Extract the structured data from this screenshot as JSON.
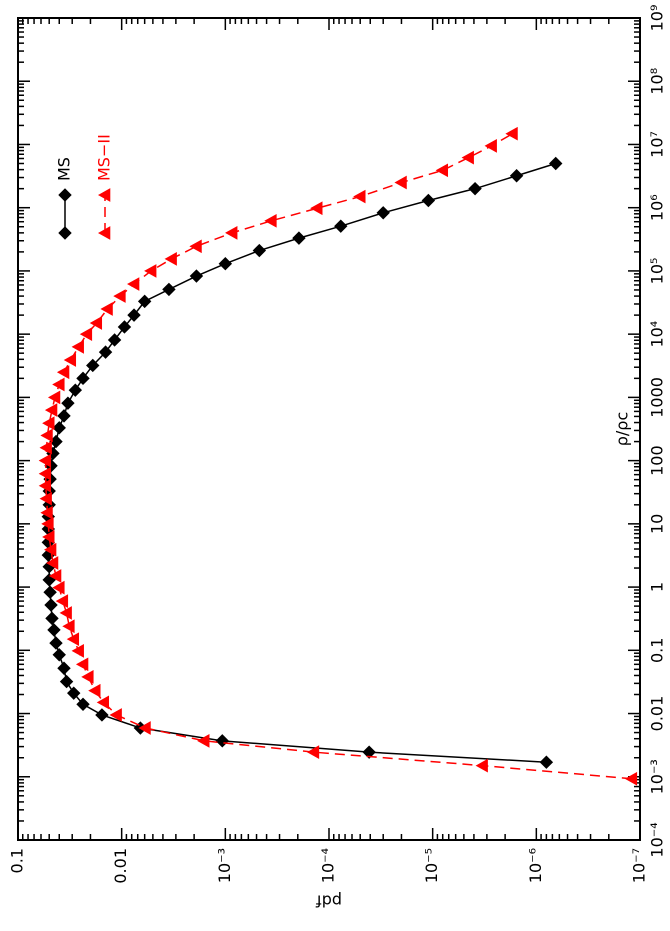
{
  "chart_data": {
    "type": "line",
    "xlabel": "ρ/ρc",
    "ylabel": "pdf",
    "xscale": "log",
    "yscale": "log",
    "xlim": [
      0.0001,
      1000000000
    ],
    "ylim": [
      1e-07,
      0.1
    ],
    "xticks": [
      {
        "value": 0.0001,
        "label": "10⁻⁴"
      },
      {
        "value": 0.001,
        "label": "10⁻³"
      },
      0.01,
      0.1,
      1,
      10,
      100,
      1000,
      {
        "value": 10000,
        "label": "10⁴"
      },
      {
        "value": 100000,
        "label": "10⁵"
      },
      {
        "value": 1000000,
        "label": "10⁶"
      },
      {
        "value": 10000000,
        "label": "10⁷"
      },
      {
        "value": 100000000,
        "label": "10⁸"
      },
      {
        "value": 1000000000,
        "label": "10⁹"
      }
    ],
    "yticks": [
      {
        "value": 1e-07,
        "label": "10⁻⁷"
      },
      {
        "value": 1e-06,
        "label": "10⁻⁶"
      },
      {
        "value": 1e-05,
        "label": "10⁻⁵"
      },
      {
        "value": 0.0001,
        "label": "10⁻⁴"
      },
      {
        "value": 0.001,
        "label": "10⁻³"
      },
      0.01,
      0.1
    ],
    "legend": "upper right",
    "series": [
      {
        "name": "MS",
        "color": "#000000",
        "linestyle": "solid",
        "marker": "diamond",
        "x": [
          0.0017,
          0.00245,
          0.0037,
          0.0059,
          0.0095,
          0.014,
          0.021,
          0.032,
          0.052,
          0.085,
          0.13,
          0.21,
          0.32,
          0.52,
          0.83,
          1.3,
          2.1,
          3.2,
          5.1,
          8.3,
          13,
          20,
          33,
          51,
          83,
          130,
          200,
          330,
          510,
          810,
          1300,
          2000,
          3200,
          5200,
          8100,
          13000,
          20000,
          33000,
          51000,
          83000,
          130000,
          210000,
          330000,
          510000,
          830000,
          1300000,
          2000000,
          3200000,
          5000000
        ],
        "values": [
          8e-07,
          4.1e-05,
          0.00107,
          0.0066,
          0.0155,
          0.0236,
          0.029,
          0.034,
          0.036,
          0.04,
          0.043,
          0.045,
          0.047,
          0.048,
          0.049,
          0.05,
          0.05,
          0.051,
          0.051,
          0.051,
          0.051,
          0.05,
          0.05,
          0.049,
          0.048,
          0.046,
          0.043,
          0.04,
          0.036,
          0.033,
          0.028,
          0.0236,
          0.019,
          0.0143,
          0.0117,
          0.0094,
          0.0076,
          0.006,
          0.0035,
          0.0019,
          0.001,
          0.00047,
          0.000195,
          7.7e-05,
          3e-05,
          1.1e-05,
          3.9e-06,
          1.55e-06,
          6.5e-07
        ]
      },
      {
        "name": "MS−II",
        "color": "#ff0000",
        "linestyle": "dashed",
        "marker": "triangle",
        "x": [
          0.00093,
          0.0015,
          0.00245,
          0.0037,
          0.0059,
          0.0095,
          0.015,
          0.023,
          0.038,
          0.06,
          0.098,
          0.15,
          0.24,
          0.39,
          0.6,
          0.98,
          1.5,
          2.4,
          3.9,
          6.2,
          10,
          15,
          25,
          40,
          62,
          100,
          160,
          250,
          390,
          630,
          1000,
          1600,
          2500,
          3900,
          6300,
          10000,
          15000,
          25000,
          40000,
          62000,
          100000,
          155000,
          245000,
          400000,
          620000,
          980000,
          1500000,
          2500000,
          3900000,
          6200000,
          9500000,
          14800000
        ],
        "values": [
          1.2e-07,
          3.3e-06,
          0.00014,
          0.0016,
          0.0059,
          0.0112,
          0.0149,
          0.018,
          0.021,
          0.0236,
          0.026,
          0.029,
          0.032,
          0.034,
          0.037,
          0.04,
          0.043,
          0.046,
          0.048,
          0.05,
          0.051,
          0.052,
          0.053,
          0.054,
          0.054,
          0.054,
          0.053,
          0.052,
          0.05,
          0.047,
          0.044,
          0.04,
          0.036,
          0.031,
          0.026,
          0.0217,
          0.0174,
          0.0137,
          0.0103,
          0.0076,
          0.0052,
          0.0033,
          0.0019,
          0.00086,
          0.00036,
          0.00013,
          5e-05,
          2e-05,
          8e-06,
          4.5e-06,
          2.7e-06,
          1.7e-06
        ]
      }
    ]
  }
}
